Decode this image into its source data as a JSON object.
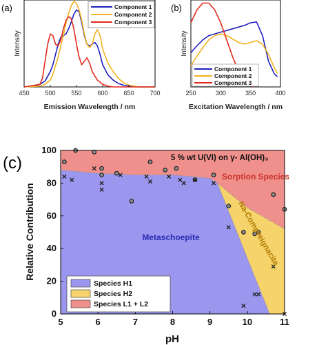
{
  "panels": {
    "a": {
      "label": "(a)"
    },
    "b": {
      "label": "(b)"
    },
    "c": {
      "label": "(c)"
    }
  },
  "colors": {
    "component1": "#1f1fbf",
    "component2": "#f2b21b",
    "component3": "#e02a1c",
    "species_h1": "#9b97ee",
    "species_h2": "#f6d36b",
    "species_l1l2": "#f0908c",
    "metaschoepite_text": "#2b2bb5",
    "sorption_text": "#c9342c",
    "na_text": "#b07a00"
  },
  "chart_data": [
    {
      "id": "a",
      "type": "line",
      "xlabel": "Emission Wavelength / nm",
      "ylabel": "Intensity",
      "xlim": [
        450,
        700
      ],
      "xticks": [
        "450",
        "500",
        "550",
        "600",
        "650",
        "700"
      ],
      "ylim": [
        0,
        1
      ],
      "legend_position": "top-right",
      "series": [
        {
          "name": "Component 1",
          "color": "component1",
          "x": [
            450,
            470,
            480,
            490,
            500,
            505,
            510,
            515,
            520,
            525,
            530,
            535,
            540,
            545,
            550,
            555,
            560,
            565,
            570,
            575,
            580,
            585,
            590,
            595,
            600,
            610,
            620,
            630,
            640,
            650,
            670,
            700
          ],
          "y": [
            0,
            0.01,
            0.03,
            0.07,
            0.18,
            0.26,
            0.38,
            0.5,
            0.58,
            0.6,
            0.62,
            0.68,
            0.76,
            0.85,
            0.9,
            0.88,
            0.75,
            0.6,
            0.5,
            0.48,
            0.5,
            0.52,
            0.48,
            0.38,
            0.26,
            0.14,
            0.08,
            0.04,
            0.02,
            0.01,
            0,
            0
          ]
        },
        {
          "name": "Component 2",
          "color": "component2",
          "x": [
            450,
            480,
            490,
            500,
            505,
            510,
            515,
            520,
            525,
            530,
            535,
            540,
            545,
            550,
            555,
            560,
            565,
            570,
            575,
            580,
            585,
            590,
            595,
            600,
            610,
            620,
            630,
            640,
            650,
            670,
            700
          ],
          "y": [
            0,
            0.01,
            0.03,
            0.08,
            0.15,
            0.25,
            0.35,
            0.48,
            0.6,
            0.75,
            0.86,
            0.95,
            1.0,
            0.98,
            0.9,
            0.78,
            0.62,
            0.5,
            0.46,
            0.5,
            0.62,
            0.67,
            0.6,
            0.44,
            0.28,
            0.18,
            0.1,
            0.05,
            0.02,
            0,
            0
          ]
        },
        {
          "name": "Component 3",
          "color": "component3",
          "x": [
            450,
            480,
            485,
            490,
            495,
            500,
            505,
            510,
            515,
            520,
            525,
            530,
            535,
            540,
            545,
            550,
            555,
            560,
            565,
            570,
            575,
            580,
            590,
            600,
            610,
            620,
            640,
            700
          ],
          "y": [
            0,
            0.03,
            0.1,
            0.3,
            0.5,
            0.62,
            0.6,
            0.5,
            0.48,
            0.55,
            0.68,
            0.78,
            0.82,
            0.8,
            0.68,
            0.5,
            0.35,
            0.26,
            0.3,
            0.34,
            0.28,
            0.18,
            0.08,
            0.03,
            0.01,
            0,
            0,
            0
          ]
        }
      ]
    },
    {
      "id": "b",
      "type": "line",
      "xlabel": "Excitation Wavelength / nm",
      "ylabel": "Intensity",
      "xlim": [
        250,
        400
      ],
      "xticks": [
        "250",
        "300",
        "350",
        "400"
      ],
      "ylim": [
        0,
        1
      ],
      "legend_position": "bottom-left",
      "series": [
        {
          "name": "Component 1",
          "color": "component1",
          "x": [
            250,
            260,
            270,
            280,
            290,
            300,
            310,
            320,
            330,
            340,
            350,
            360,
            370,
            380,
            390,
            395
          ],
          "y": [
            0.4,
            0.48,
            0.55,
            0.6,
            0.62,
            0.64,
            0.66,
            0.68,
            0.7,
            0.72,
            0.75,
            0.76,
            0.6,
            0.3,
            0.15,
            0.12
          ]
        },
        {
          "name": "Component 2",
          "color": "component2",
          "x": [
            250,
            260,
            270,
            280,
            290,
            300,
            310,
            320,
            330,
            340,
            350,
            360,
            370,
            380,
            390,
            395
          ],
          "y": [
            0.25,
            0.36,
            0.46,
            0.55,
            0.6,
            0.62,
            0.6,
            0.56,
            0.52,
            0.5,
            0.52,
            0.54,
            0.5,
            0.38,
            0.22,
            0.16
          ]
        },
        {
          "name": "Component 3",
          "color": "component3",
          "x": [
            250,
            260,
            270,
            280,
            290,
            300,
            310,
            320,
            330,
            340,
            350,
            355
          ],
          "y": [
            0.75,
            0.9,
            0.98,
            0.98,
            0.9,
            0.75,
            0.55,
            0.35,
            0.18,
            0.08,
            0.03,
            0.0
          ]
        }
      ]
    },
    {
      "id": "c",
      "type": "area",
      "title": "5 % wt U(VI) on γ- Al(OH)₃",
      "xlabel": "pH",
      "ylabel": "Relative Contribution",
      "xlim": [
        5,
        11
      ],
      "xticks": [
        "5",
        "6",
        "7",
        "8",
        "9",
        "10",
        "11"
      ],
      "ylim": [
        0,
        100
      ],
      "yticks": [
        "0",
        "20",
        "40",
        "60",
        "80",
        "100"
      ],
      "legend_position": "bottom-left",
      "boundaries": {
        "h1_top": {
          "x": [
            5,
            6,
            7,
            8,
            9,
            9.2,
            10.6,
            11
          ],
          "y": [
            88,
            86,
            85,
            85,
            83,
            80,
            0,
            0
          ]
        },
        "h1h2_top": {
          "x": [
            5,
            6,
            7,
            8,
            9,
            9.2,
            10,
            11
          ],
          "y": [
            88,
            86,
            85,
            85,
            83,
            80,
            65,
            52
          ]
        }
      },
      "areas": [
        {
          "name": "Species H1",
          "color": "species_h1"
        },
        {
          "name": "Species H2",
          "color": "species_h2"
        },
        {
          "name": "Species L1 + L2",
          "color": "species_l1l2"
        }
      ],
      "region_labels": [
        "Metaschoepite",
        "Sorption Species",
        "Na-Compreignacite"
      ],
      "points_circle": {
        "x": [
          5.1,
          5.4,
          5.9,
          6.1,
          6.1,
          6.5,
          6.9,
          7.4,
          7.8,
          8.1,
          8.6,
          9.1,
          9.5,
          9.9,
          10.2,
          10.3,
          10.7,
          11.0
        ],
        "y": [
          93,
          100,
          99,
          89,
          85,
          86,
          69,
          93,
          88,
          89,
          82,
          85,
          66,
          50,
          49,
          50,
          73,
          64
        ]
      },
      "points_cross": {
        "x": [
          5.1,
          5.3,
          5.9,
          6.1,
          6.1,
          6.6,
          7.3,
          7.4,
          7.9,
          8.2,
          8.3,
          8.6,
          9.1,
          9.5,
          9.9,
          10.2,
          10.3,
          10.7,
          11.0
        ],
        "y": [
          84,
          82,
          89,
          80,
          76,
          85,
          84,
          81,
          84,
          82,
          80,
          82,
          80,
          53,
          5,
          12,
          12,
          29,
          0
        ]
      }
    }
  ]
}
